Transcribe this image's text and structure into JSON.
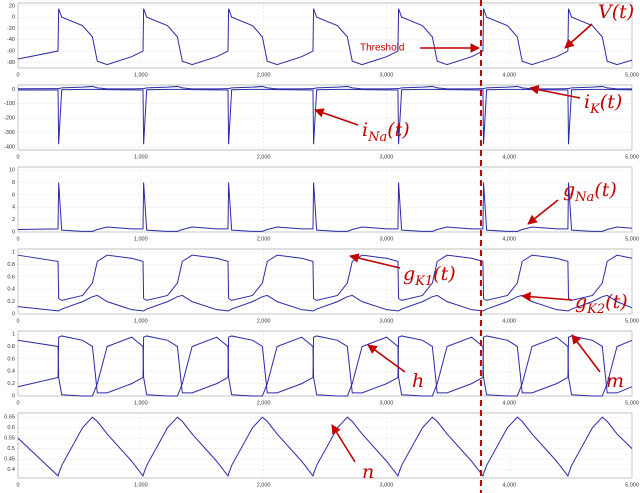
{
  "chart_data": [
    {
      "type": "line",
      "threshold_label": "Threshold",
      "threshold_x": 3770,
      "x": [
        0,
        326,
        331,
        356,
        526,
        606,
        646,
        726,
        926,
        1018,
        1023,
        1048,
        1218,
        1298,
        1338,
        1418,
        1618,
        1710,
        1715,
        1740,
        1910,
        1990,
        2030,
        2110,
        2310,
        2402,
        2407,
        2432,
        2602,
        2682,
        2722,
        2802,
        3002,
        3094,
        3099,
        3124,
        3294,
        3374,
        3414,
        3494,
        3694,
        3786,
        3791,
        3816,
        3986,
        4066,
        4106,
        4186,
        4386,
        4478,
        4483,
        4508,
        4678,
        4758,
        4798,
        4878,
        5000
      ],
      "series": [
        {
          "name": "V(t)",
          "color": "#2a2aa8",
          "values": [
            -74,
            -60,
            15,
            0,
            -15,
            -35,
            -78,
            -84,
            -70,
            -60,
            15,
            0,
            -15,
            -35,
            -78,
            -84,
            -70,
            -60,
            15,
            0,
            -15,
            -35,
            -78,
            -84,
            -70,
            -60,
            15,
            0,
            -15,
            -35,
            -78,
            -84,
            -70,
            -60,
            15,
            0,
            -15,
            -35,
            -78,
            -84,
            -70,
            -60,
            15,
            0,
            -15,
            -35,
            -78,
            -84,
            -70,
            -60,
            15,
            0,
            -15,
            -35,
            -78,
            -84,
            -76
          ]
        }
      ],
      "xlim": [
        0,
        5000
      ],
      "ylim": [
        -90,
        25
      ],
      "xticks": [
        0,
        {
          "value": 1000,
          "label": "1,000"
        },
        {
          "value": 2000,
          "label": "2,000"
        },
        {
          "value": 3000,
          "label": "3,000"
        },
        {
          "value": 4000,
          "label": "4,000"
        },
        {
          "value": 5000,
          "label": "5,000"
        }
      ],
      "yticks": [
        -80,
        -60,
        -40,
        -20,
        0,
        20
      ],
      "grid": true,
      "annotations": [
        {
          "text": "V",
          "after": "(t)"
        }
      ]
    },
    {
      "type": "line",
      "x": [
        0,
        326,
        331,
        356,
        526,
        606,
        646,
        726,
        926,
        1018,
        1023,
        1048,
        1218,
        1298,
        1338,
        1418,
        1618,
        1710,
        1715,
        1740,
        1910,
        1990,
        2030,
        2110,
        2310,
        2402,
        2407,
        2432,
        2602,
        2682,
        2722,
        2802,
        3002,
        3094,
        3099,
        3124,
        3294,
        3374,
        3414,
        3494,
        3694,
        3786,
        3791,
        3816,
        3986,
        4066,
        4106,
        4186,
        4386,
        4478,
        4483,
        4508,
        4678,
        4758,
        4798,
        4878,
        5000
      ],
      "series": [
        {
          "name": "iNa(t)",
          "color": "#2a2aa8",
          "values": [
            -5,
            -5,
            -380,
            -3,
            0,
            0,
            0,
            -2,
            -4,
            -5,
            -380,
            -3,
            0,
            0,
            0,
            -2,
            -4,
            -5,
            -380,
            -3,
            0,
            0,
            0,
            -2,
            -4,
            -5,
            -380,
            -3,
            0,
            0,
            0,
            -2,
            -4,
            -5,
            -380,
            -3,
            0,
            0,
            0,
            -2,
            -4,
            -5,
            -380,
            -3,
            0,
            0,
            0,
            -2,
            -4,
            -5,
            -380,
            -3,
            0,
            0,
            0,
            -2,
            -4
          ]
        },
        {
          "name": "iK(t)",
          "color": "#2a2aa8",
          "values": [
            4,
            5,
            5,
            10,
            15,
            20,
            10,
            3,
            3,
            5,
            5,
            10,
            15,
            20,
            10,
            3,
            3,
            5,
            5,
            10,
            15,
            20,
            10,
            3,
            3,
            5,
            5,
            10,
            15,
            20,
            10,
            3,
            3,
            5,
            5,
            10,
            15,
            20,
            10,
            3,
            3,
            5,
            5,
            10,
            15,
            20,
            10,
            3,
            3,
            5,
            5,
            10,
            15,
            20,
            10,
            3,
            3
          ]
        }
      ],
      "xlim": [
        0,
        5000
      ],
      "ylim": [
        -420,
        30
      ],
      "xticks": [
        0,
        {
          "value": 1000,
          "label": "1,000"
        },
        {
          "value": 2000,
          "label": "2,000"
        },
        {
          "value": 3000,
          "label": "3,000"
        },
        {
          "value": 4000,
          "label": "4,000"
        },
        {
          "value": 5000,
          "label": "5,000"
        }
      ],
      "yticks": [
        -400,
        -300,
        -200,
        -100,
        0
      ],
      "grid": true,
      "annotations": [
        {
          "text": "i",
          "sub": "K",
          "after": "(t)"
        },
        {
          "text": "i",
          "sub": "Na",
          "after": "(t)"
        }
      ]
    },
    {
      "type": "line",
      "x": [
        0,
        326,
        331,
        356,
        526,
        606,
        646,
        726,
        926,
        1018,
        1023,
        1048,
        1218,
        1298,
        1338,
        1418,
        1618,
        1710,
        1715,
        1740,
        1910,
        1990,
        2030,
        2110,
        2310,
        2402,
        2407,
        2432,
        2602,
        2682,
        2722,
        2802,
        3002,
        3094,
        3099,
        3124,
        3294,
        3374,
        3414,
        3494,
        3694,
        3786,
        3791,
        3816,
        3986,
        4066,
        4106,
        4186,
        4386,
        4478,
        4483,
        4508,
        4678,
        4758,
        4798,
        4878,
        5000
      ],
      "series": [
        {
          "name": "gNa(t)",
          "color": "#2a2aa8",
          "values": [
            0.4,
            0.5,
            8,
            0.3,
            0.1,
            0.1,
            0.4,
            0.8,
            0.5,
            0.5,
            8,
            0.3,
            0.1,
            0.1,
            0.4,
            0.8,
            0.5,
            0.5,
            8,
            0.3,
            0.1,
            0.1,
            0.4,
            0.8,
            0.5,
            0.5,
            8,
            0.3,
            0.1,
            0.1,
            0.4,
            0.8,
            0.5,
            0.5,
            8,
            0.3,
            0.1,
            0.1,
            0.4,
            0.8,
            0.5,
            0.5,
            8,
            0.3,
            0.1,
            0.1,
            0.4,
            0.8,
            0.5,
            0.5,
            8,
            0.3,
            0.1,
            0.1,
            0.4,
            0.8,
            0.6
          ]
        }
      ],
      "xlim": [
        0,
        5000
      ],
      "ylim": [
        0,
        10.5
      ],
      "xticks": [
        0,
        {
          "value": 1000,
          "label": "1,000"
        },
        {
          "value": 2000,
          "label": "2,000"
        },
        {
          "value": 3000,
          "label": "3,000"
        },
        {
          "value": 4000,
          "label": "4,000"
        },
        {
          "value": 5000,
          "label": "5,000"
        }
      ],
      "yticks": [
        0,
        2,
        4,
        6,
        8,
        10
      ],
      "grid": true,
      "annotations": [
        {
          "text": "g",
          "sub": "Na",
          "after": "(t)"
        }
      ]
    },
    {
      "type": "line",
      "x": [
        0,
        326,
        331,
        356,
        526,
        606,
        646,
        726,
        926,
        1018,
        1023,
        1048,
        1218,
        1298,
        1338,
        1418,
        1618,
        1710,
        1715,
        1740,
        1910,
        1990,
        2030,
        2110,
        2310,
        2402,
        2407,
        2432,
        2602,
        2682,
        2722,
        2802,
        3002,
        3094,
        3099,
        3124,
        3294,
        3374,
        3414,
        3494,
        3694,
        3786,
        3791,
        3816,
        3986,
        4066,
        4106,
        4186,
        4386,
        4478,
        4483,
        4508,
        4678,
        4758,
        4798,
        4878,
        5000
      ],
      "series": [
        {
          "name": "gK1(t)",
          "color": "#2a2aa8",
          "values": [
            0.95,
            0.85,
            0.25,
            0.22,
            0.3,
            0.5,
            0.85,
            0.95,
            0.9,
            0.85,
            0.25,
            0.22,
            0.3,
            0.5,
            0.85,
            0.95,
            0.9,
            0.85,
            0.25,
            0.22,
            0.3,
            0.5,
            0.85,
            0.95,
            0.9,
            0.85,
            0.25,
            0.22,
            0.3,
            0.5,
            0.85,
            0.95,
            0.9,
            0.85,
            0.25,
            0.22,
            0.3,
            0.5,
            0.85,
            0.95,
            0.9,
            0.85,
            0.25,
            0.22,
            0.3,
            0.5,
            0.85,
            0.95,
            0.9,
            0.85,
            0.25,
            0.22,
            0.3,
            0.5,
            0.85,
            0.95,
            0.9
          ]
        },
        {
          "name": "gK2(t)",
          "color": "#2a2aa8",
          "values": [
            0.12,
            0.05,
            0.05,
            0.08,
            0.2,
            0.28,
            0.3,
            0.2,
            0.07,
            0.05,
            0.05,
            0.08,
            0.2,
            0.28,
            0.3,
            0.2,
            0.07,
            0.05,
            0.05,
            0.08,
            0.2,
            0.28,
            0.3,
            0.2,
            0.07,
            0.05,
            0.05,
            0.08,
            0.2,
            0.28,
            0.3,
            0.2,
            0.07,
            0.05,
            0.05,
            0.08,
            0.2,
            0.28,
            0.3,
            0.2,
            0.07,
            0.05,
            0.05,
            0.08,
            0.2,
            0.28,
            0.3,
            0.2,
            0.07,
            0.05,
            0.05,
            0.08,
            0.2,
            0.28,
            0.3,
            0.2,
            0.1
          ]
        }
      ],
      "xlim": [
        0,
        5000
      ],
      "ylim": [
        0,
        1.05
      ],
      "xticks": [
        0,
        {
          "value": 1000,
          "label": "1,000"
        },
        {
          "value": 2000,
          "label": "2,000"
        },
        {
          "value": 3000,
          "label": "3,000"
        },
        {
          "value": 4000,
          "label": "4,000"
        },
        {
          "value": 5000,
          "label": "5,000"
        }
      ],
      "yticks": [
        0,
        0.2,
        0.4,
        0.6,
        0.8,
        1
      ],
      "grid": true,
      "annotations": [
        {
          "text": "g",
          "sub": "K1",
          "after": "(t)"
        },
        {
          "text": "g",
          "sub": "K2",
          "after": "(t)"
        }
      ]
    },
    {
      "type": "line",
      "x": [
        0,
        326,
        331,
        356,
        526,
        606,
        646,
        726,
        926,
        1018,
        1023,
        1048,
        1218,
        1298,
        1338,
        1418,
        1618,
        1710,
        1715,
        1740,
        1910,
        1990,
        2030,
        2110,
        2310,
        2402,
        2407,
        2432,
        2602,
        2682,
        2722,
        2802,
        3002,
        3094,
        3099,
        3124,
        3294,
        3374,
        3414,
        3494,
        3694,
        3786,
        3791,
        3816,
        3986,
        4066,
        4106,
        4186,
        4386,
        4478,
        4483,
        4508,
        4678,
        4758,
        4798,
        4878,
        5000
      ],
      "series": [
        {
          "name": "h",
          "color": "#2a2aa8",
          "values": [
            0.9,
            0.8,
            0.3,
            0.02,
            0,
            0,
            0.2,
            0.8,
            0.95,
            0.8,
            0.3,
            0.02,
            0,
            0,
            0.2,
            0.8,
            0.95,
            0.8,
            0.3,
            0.02,
            0,
            0,
            0.2,
            0.8,
            0.95,
            0.8,
            0.3,
            0.02,
            0,
            0,
            0.2,
            0.8,
            0.95,
            0.8,
            0.3,
            0.02,
            0,
            0,
            0.2,
            0.8,
            0.95,
            0.8,
            0.3,
            0.02,
            0,
            0,
            0.2,
            0.8,
            0.95,
            0.8,
            0.3,
            0.02,
            0,
            0,
            0.2,
            0.8,
            0.9
          ]
        },
        {
          "name": "m",
          "color": "#2a2aa8",
          "values": [
            0.15,
            0.3,
            0.95,
            0.97,
            0.9,
            0.8,
            0.05,
            0.05,
            0.2,
            0.3,
            0.95,
            0.97,
            0.9,
            0.8,
            0.05,
            0.05,
            0.2,
            0.3,
            0.95,
            0.97,
            0.9,
            0.8,
            0.05,
            0.05,
            0.2,
            0.3,
            0.95,
            0.97,
            0.9,
            0.8,
            0.05,
            0.05,
            0.2,
            0.3,
            0.95,
            0.97,
            0.9,
            0.8,
            0.05,
            0.05,
            0.2,
            0.3,
            0.95,
            0.97,
            0.9,
            0.8,
            0.05,
            0.05,
            0.2,
            0.3,
            0.95,
            0.97,
            0.9,
            0.8,
            0.05,
            0.05,
            0.15
          ]
        }
      ],
      "xlim": [
        0,
        5000
      ],
      "ylim": [
        0,
        1.05
      ],
      "xticks": [
        0,
        {
          "value": 1000,
          "label": "1,000"
        },
        {
          "value": 2000,
          "label": "2,000"
        },
        {
          "value": 3000,
          "label": "3,000"
        },
        {
          "value": 4000,
          "label": "4,000"
        },
        {
          "value": 5000,
          "label": "5,000"
        }
      ],
      "yticks": [
        0,
        0.2,
        0.4,
        0.6,
        0.8,
        1
      ],
      "grid": true,
      "annotations": [
        {
          "text": "h"
        },
        {
          "text": "m"
        }
      ]
    },
    {
      "type": "line",
      "x": [
        0,
        326,
        331,
        356,
        526,
        606,
        646,
        726,
        926,
        1018,
        1023,
        1048,
        1218,
        1298,
        1338,
        1418,
        1618,
        1710,
        1715,
        1740,
        1910,
        1990,
        2030,
        2110,
        2310,
        2402,
        2407,
        2432,
        2602,
        2682,
        2722,
        2802,
        3002,
        3094,
        3099,
        3124,
        3294,
        3374,
        3414,
        3494,
        3694,
        3786,
        3791,
        3816,
        3986,
        4066,
        4106,
        4186,
        4386,
        4478,
        4483,
        4508,
        4678,
        4758,
        4798,
        4878,
        5000
      ],
      "series": [
        {
          "name": "n",
          "color": "#2a2aa8",
          "values": [
            0.55,
            0.37,
            0.38,
            0.42,
            0.6,
            0.65,
            0.63,
            0.57,
            0.44,
            0.37,
            0.38,
            0.42,
            0.6,
            0.65,
            0.63,
            0.57,
            0.44,
            0.37,
            0.38,
            0.42,
            0.6,
            0.65,
            0.63,
            0.57,
            0.44,
            0.37,
            0.38,
            0.42,
            0.6,
            0.65,
            0.63,
            0.57,
            0.44,
            0.37,
            0.38,
            0.42,
            0.6,
            0.65,
            0.63,
            0.57,
            0.44,
            0.37,
            0.38,
            0.42,
            0.6,
            0.65,
            0.63,
            0.57,
            0.44,
            0.37,
            0.38,
            0.42,
            0.6,
            0.65,
            0.63,
            0.57,
            0.5
          ]
        }
      ],
      "xlim": [
        0,
        5000
      ],
      "ylim": [
        0.36,
        0.67
      ],
      "xticks": [
        0,
        {
          "value": 1000,
          "label": "1,000"
        },
        {
          "value": 2000,
          "label": "2,000"
        },
        {
          "value": 3000,
          "label": "3,000"
        },
        {
          "value": 4000,
          "label": "4,000"
        },
        {
          "value": 5000,
          "label": "5,000"
        }
      ],
      "yticks": [
        0.4,
        0.45,
        0.5,
        0.55,
        0.6,
        0.65
      ],
      "grid": true,
      "annotations": [
        {
          "text": "n"
        }
      ]
    }
  ]
}
